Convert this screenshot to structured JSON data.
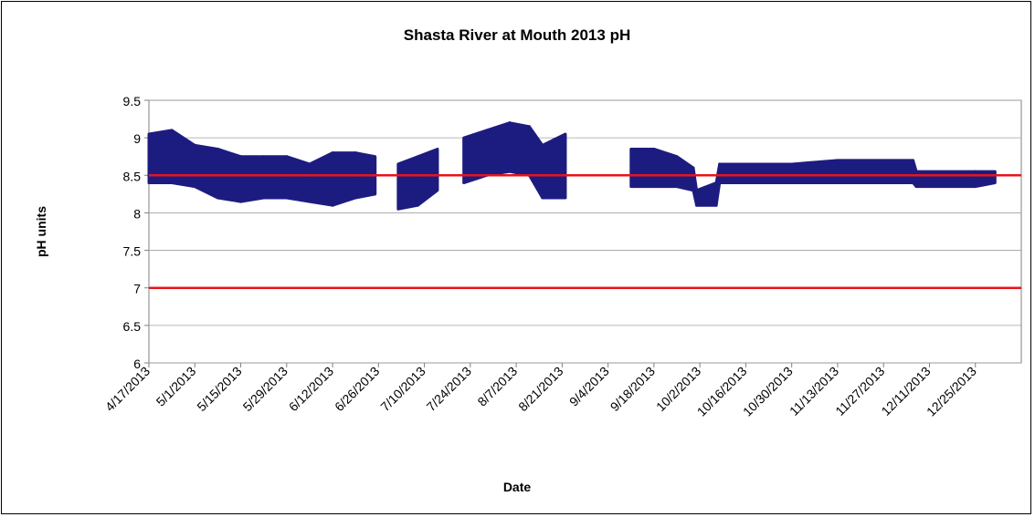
{
  "chart_data": {
    "type": "range",
    "title": "Shasta River at Mouth 2013 pH",
    "x_label": "Date",
    "y_label": "pH units",
    "color": "#1c1c80",
    "x": [
      "4/17/2013",
      "4/24/2013",
      "5/1/2013",
      "5/8/2013",
      "5/15/2013",
      "5/22/2013",
      "5/29/2013",
      "6/5/2013",
      "6/12/2013",
      "6/19/2013",
      "6/25/2013",
      "6/30/2013",
      "7/2/2013",
      "7/8/2013",
      "7/14/2013",
      "7/18/2013",
      "7/22/2013",
      "7/29/2013",
      "8/5/2013",
      "8/11/2013",
      "8/15/2013",
      "8/22/2013",
      "9/1/2013",
      "9/11/2013",
      "9/18/2013",
      "9/25/2013",
      "9/30/2013",
      "10/1/2013",
      "10/7/2013",
      "10/8/2013",
      "10/16/2013",
      "10/30/2013",
      "11/13/2013",
      "11/27/2013",
      "12/6/2013",
      "12/7/2013",
      "12/25/2013",
      "12/31/2013"
    ],
    "low": [
      8.4,
      8.4,
      8.35,
      8.2,
      8.15,
      8.2,
      8.2,
      8.15,
      8.1,
      8.2,
      8.25,
      null,
      8.05,
      8.1,
      8.3,
      null,
      8.4,
      8.5,
      8.55,
      8.5,
      8.2,
      8.2,
      null,
      8.35,
      8.35,
      8.35,
      8.3,
      8.1,
      8.1,
      8.4,
      8.4,
      8.4,
      8.4,
      8.4,
      8.4,
      8.35,
      8.35,
      8.4
    ],
    "high": [
      9.05,
      9.1,
      8.9,
      8.85,
      8.75,
      8.75,
      8.75,
      8.65,
      8.8,
      8.8,
      8.75,
      null,
      8.65,
      8.75,
      8.85,
      null,
      9.0,
      9.1,
      9.2,
      9.15,
      8.9,
      9.05,
      null,
      8.85,
      8.85,
      8.75,
      8.6,
      8.3,
      8.4,
      8.65,
      8.65,
      8.65,
      8.7,
      8.7,
      8.7,
      8.55,
      8.55,
      8.55
    ],
    "reference_lines": [
      8.5,
      7
    ],
    "reference_color": "#e8141c",
    "ylim": [
      6,
      9.5
    ],
    "yticks": [
      6,
      6.5,
      7,
      7.5,
      8,
      8.5,
      9,
      9.5
    ],
    "xticks": [
      "4/17/2013",
      "5/1/2013",
      "5/15/2013",
      "5/29/2013",
      "6/12/2013",
      "6/26/2013",
      "7/10/2013",
      "7/24/2013",
      "8/7/2013",
      "8/21/2013",
      "9/4/2013",
      "9/18/2013",
      "10/2/2013",
      "10/16/2013",
      "10/30/2013",
      "11/13/2013",
      "11/27/2013",
      "12/11/2013",
      "12/25/2013"
    ],
    "grid": true
  }
}
